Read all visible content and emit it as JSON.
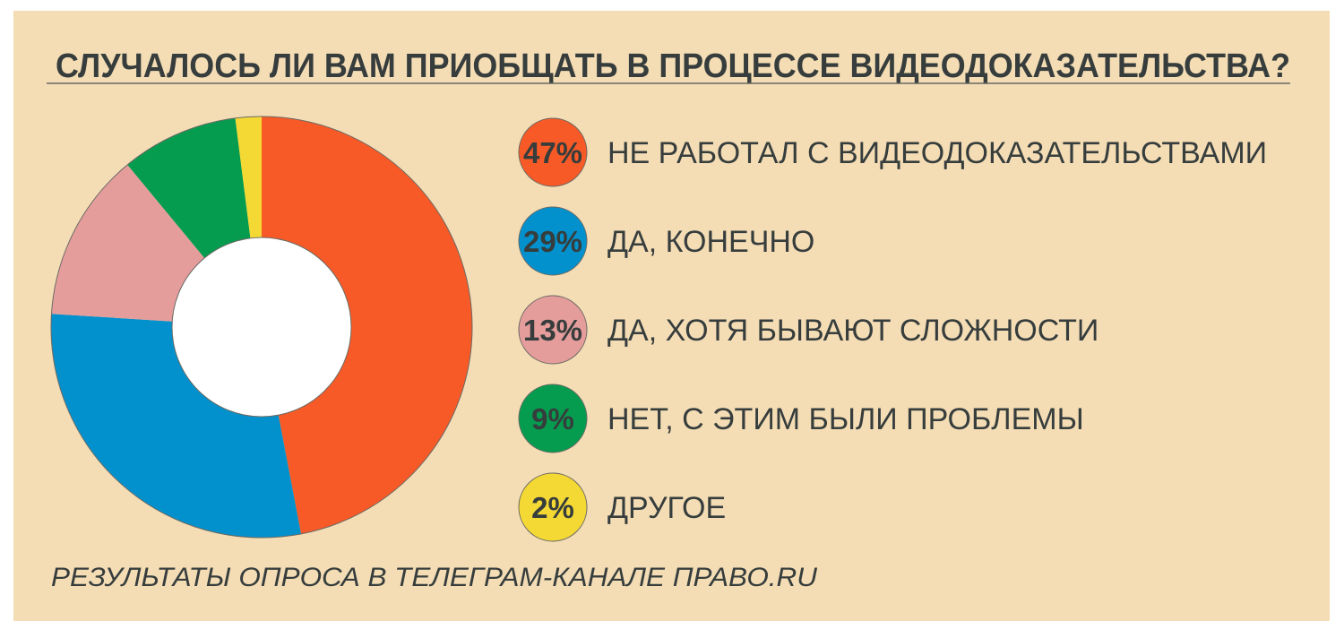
{
  "chart_data": {
    "type": "pie",
    "variant": "donut",
    "title": "СЛУЧАЛОСЬ ЛИ ВАМ ПРИОБЩАТЬ В ПРОЦЕССЕ ВИДЕОДОКАЗАТЕЛЬСТВА?",
    "slices": [
      {
        "label": "НЕ РАБОТАЛ С ВИДЕОДОКАЗАТЕЛЬСТВАМИ",
        "value": 47,
        "value_label": "47%",
        "color": "#f75a27"
      },
      {
        "label": "ДА, КОНЕЧНО",
        "value": 29,
        "value_label": "29%",
        "color": "#0391cd"
      },
      {
        "label": "ДА, ХОТЯ БЫВАЮТ СЛОЖНОСТИ",
        "value": 13,
        "value_label": "13%",
        "color": "#e59d9c"
      },
      {
        "label": "НЕТ, С ЭТИМ БЫЛИ ПРОБЛЕМЫ",
        "value": 9,
        "value_label": "9%",
        "color": "#059c4f"
      },
      {
        "label": "ДРУГОЕ",
        "value": 2,
        "value_label": "2%",
        "color": "#f4d834"
      }
    ],
    "legend_placement": "right",
    "footnote": "РЕЗУЛЬТАТЫ ОПРОСА В ТЕЛЕГРАМ-КАНАЛЕ ПРАВО.RU"
  },
  "colors": {
    "background": "#f4ddb5",
    "text": "#363d3c"
  }
}
